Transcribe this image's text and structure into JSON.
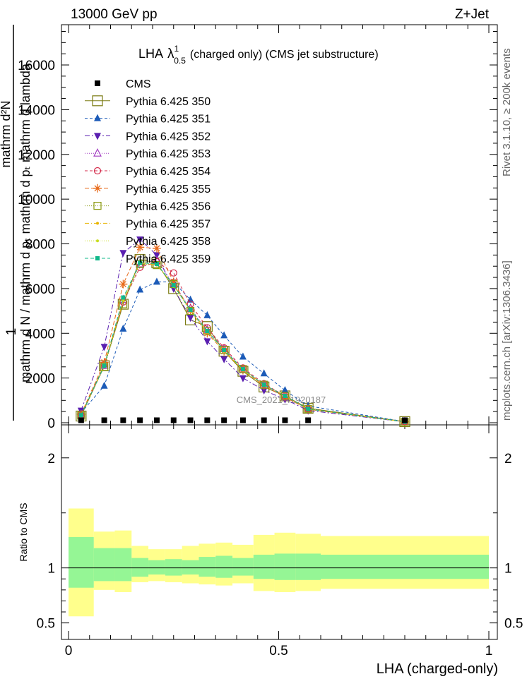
{
  "header": {
    "left": "13000 GeV pp",
    "right": "Z+Jet"
  },
  "side_labels": {
    "rivet": "Rivet 3.1.10, ≥ 200k events",
    "mcplots": "mcplots.cern.ch [arXiv:1306.3436]"
  },
  "watermark": "CMS_2021_I1920187",
  "chart_data": {
    "type": "line",
    "title": "LHA",
    "title_lambda": "λ",
    "title_sup": "1",
    "title_sub": "0.5",
    "title_suffix": "(charged only) (CMS jet substructure)",
    "xlabel": "LHA (charged-only)",
    "ylabel_top": "1",
    "ylabel_den": "mathrm d N / mathrm d pₜ mathrm d pₜ mathrm d lambda",
    "ylabel_num": "mathrm d²N",
    "ratio_ylabel": "Ratio to CMS",
    "xlim": [
      0,
      1
    ],
    "ylim": [
      0,
      17800
    ],
    "ratio_ylim": [
      0.35,
      2.3
    ],
    "x_ticks": [
      "0",
      "0.5",
      "1"
    ],
    "y_ticks": [
      0,
      2000,
      4000,
      6000,
      8000,
      10000,
      12000,
      14000,
      16000
    ],
    "y_tick_labels": [
      "0",
      "2000",
      "4000",
      "6000",
      "8000",
      "10000",
      "12000",
      "14000",
      "16000"
    ],
    "ratio_ticks": [
      "0.5",
      "1",
      "2"
    ],
    "bin_edges": [
      0,
      0.06,
      0.11,
      0.15,
      0.19,
      0.23,
      0.27,
      0.31,
      0.35,
      0.39,
      0.44,
      0.49,
      0.54,
      0.6,
      1.0
    ],
    "x": [
      0.03,
      0.085,
      0.13,
      0.17,
      0.21,
      0.25,
      0.29,
      0.33,
      0.37,
      0.415,
      0.465,
      0.515,
      0.57,
      0.8
    ],
    "cms": [
      80,
      80,
      80,
      80,
      80,
      80,
      80,
      80,
      80,
      80,
      80,
      80,
      80,
      80
    ],
    "ratio_band_inner": [
      [
        0.82,
        1.28
      ],
      [
        0.88,
        1.18
      ],
      [
        0.88,
        1.18
      ],
      [
        0.92,
        1.09
      ],
      [
        0.94,
        1.07
      ],
      [
        0.93,
        1.08
      ],
      [
        0.94,
        1.07
      ],
      [
        0.92,
        1.1
      ],
      [
        0.91,
        1.11
      ],
      [
        0.93,
        1.09
      ],
      [
        0.9,
        1.12
      ],
      [
        0.89,
        1.13
      ],
      [
        0.89,
        1.13
      ],
      [
        0.9,
        1.12
      ]
    ],
    "ratio_band_outer": [
      [
        0.56,
        1.54
      ],
      [
        0.8,
        1.33
      ],
      [
        0.78,
        1.34
      ],
      [
        0.87,
        1.2
      ],
      [
        0.88,
        1.17
      ],
      [
        0.87,
        1.17
      ],
      [
        0.86,
        1.2
      ],
      [
        0.85,
        1.22
      ],
      [
        0.84,
        1.23
      ],
      [
        0.86,
        1.21
      ],
      [
        0.79,
        1.3
      ],
      [
        0.78,
        1.32
      ],
      [
        0.79,
        1.31
      ],
      [
        0.81,
        1.29
      ]
    ],
    "series": [
      {
        "name": "Pythia 6.425 350",
        "color": "#7a7a10",
        "marker": "square-big",
        "dash": "",
        "values": [
          300,
          2550,
          5300,
          7300,
          7150,
          6000,
          4600,
          4300,
          3200,
          2300,
          1600,
          1200,
          650,
          50
        ]
      },
      {
        "name": "Pythia 6.425 351",
        "color": "#1c5bb8",
        "marker": "triangle-up",
        "dash": "4,3",
        "values": [
          450,
          1650,
          4200,
          5950,
          6300,
          6300,
          5500,
          4800,
          3900,
          2950,
          2200,
          1450,
          750,
          50
        ]
      },
      {
        "name": "Pythia 6.425 352",
        "color": "#5a1fb0",
        "marker": "triangle-down",
        "dash": "7,3,2,3",
        "values": [
          550,
          3400,
          7600,
          8200,
          7500,
          6000,
          4700,
          3650,
          2850,
          2000,
          1450,
          1050,
          550,
          40
        ]
      },
      {
        "name": "Pythia 6.425 353",
        "color": "#a038c0",
        "marker": "triangle-open",
        "dash": "1,2",
        "values": [
          350,
          2550,
          5500,
          7100,
          7250,
          6200,
          5100,
          4150,
          3300,
          2400,
          1700,
          1150,
          600,
          45
        ]
      },
      {
        "name": "Pythia 6.425 354",
        "color": "#d42a4a",
        "marker": "circle-open",
        "dash": "4,3",
        "values": [
          350,
          2600,
          5400,
          6950,
          7200,
          6700,
          5300,
          4250,
          3350,
          2450,
          1750,
          1200,
          620,
          45
        ]
      },
      {
        "name": "Pythia 6.425 355",
        "color": "#e86a1a",
        "marker": "star",
        "dash": "6,3",
        "values": [
          380,
          2700,
          6200,
          7850,
          7800,
          6300,
          5000,
          4000,
          3200,
          2350,
          1650,
          1150,
          600,
          45
        ]
      },
      {
        "name": "Pythia 6.425 356",
        "color": "#8a9a10",
        "marker": "square-open",
        "dash": "1,2",
        "values": [
          320,
          2500,
          5300,
          7100,
          7050,
          6200,
          5000,
          4100,
          3250,
          2400,
          1700,
          1200,
          620,
          45
        ]
      },
      {
        "name": "Pythia 6.425 357",
        "color": "#e8b400",
        "marker": "dot-small",
        "dash": "6,3,1,3",
        "values": [
          330,
          2550,
          5450,
          7150,
          7050,
          6150,
          5050,
          4100,
          3250,
          2350,
          1700,
          1200,
          610,
          45
        ]
      },
      {
        "name": "Pythia 6.425 358",
        "color": "#c8dc20",
        "marker": "dot-small",
        "dash": "1,2",
        "values": [
          330,
          2600,
          5500,
          7200,
          7100,
          6100,
          5000,
          4050,
          3200,
          2350,
          1700,
          1200,
          610,
          45
        ]
      },
      {
        "name": "Pythia 6.425 359",
        "color": "#10b88a",
        "marker": "square-small",
        "dash": "5,3",
        "values": [
          340,
          2550,
          5600,
          7150,
          7100,
          6150,
          5050,
          4100,
          3250,
          2400,
          1700,
          1200,
          620,
          45
        ]
      }
    ],
    "legend": {
      "data_label": "CMS",
      "position": "top-left"
    }
  }
}
